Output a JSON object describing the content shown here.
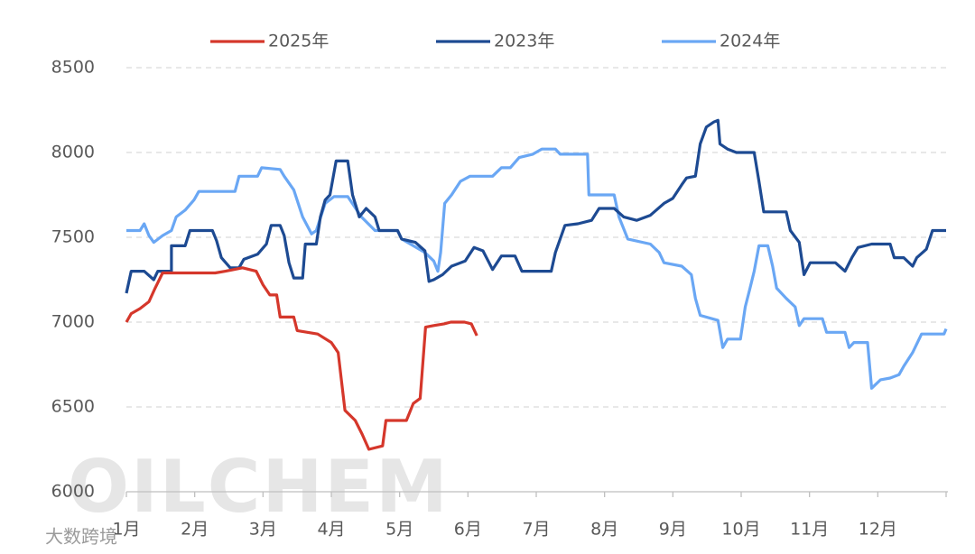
{
  "chart_data": {
    "type": "line",
    "watermark": "OILCHEM",
    "corner_mark": "大数跨境",
    "xlim": [
      0,
      12
    ],
    "xticks": [
      {
        "value": 0,
        "label": "1月"
      },
      {
        "value": 1,
        "label": "2月"
      },
      {
        "value": 2,
        "label": "3月"
      },
      {
        "value": 3,
        "label": "4月"
      },
      {
        "value": 4,
        "label": "5月"
      },
      {
        "value": 5,
        "label": "6月"
      },
      {
        "value": 6,
        "label": "7月"
      },
      {
        "value": 7,
        "label": "8月"
      },
      {
        "value": 8,
        "label": "9月"
      },
      {
        "value": 9,
        "label": "10月"
      },
      {
        "value": 10,
        "label": "11月"
      },
      {
        "value": 11,
        "label": "12月"
      }
    ],
    "ylim": [
      6000,
      8500
    ],
    "yticks": [
      6000,
      6500,
      7000,
      7500,
      8000,
      8500
    ],
    "grid": true,
    "legend": "top",
    "series": [
      {
        "name": "2025年",
        "color": "#d5372b",
        "x": [
          0,
          0.07,
          0.2,
          0.33,
          0.42,
          0.53,
          1.3,
          1.45,
          1.7,
          1.9,
          2.0,
          2.1,
          2.2,
          2.25,
          2.45,
          2.5,
          2.8,
          3.0,
          3.1,
          3.2,
          3.35,
          3.45,
          3.55,
          3.75,
          3.8,
          4.1,
          4.2,
          4.3,
          4.38,
          4.5,
          4.65,
          4.75,
          4.95,
          5.05,
          5.13
        ],
        "values": [
          7000,
          7050,
          7080,
          7120,
          7200,
          7290,
          7290,
          7300,
          7320,
          7300,
          7220,
          7160,
          7160,
          7030,
          7030,
          6950,
          6930,
          6880,
          6820,
          6480,
          6420,
          6340,
          6250,
          6270,
          6420,
          6420,
          6520,
          6550,
          6970,
          6980,
          6990,
          7000,
          7000,
          6990,
          6920
        ]
      },
      {
        "name": "2023年",
        "color": "#1d4a92",
        "x": [
          0,
          0.07,
          0.26,
          0.4,
          0.46,
          0.66,
          0.66,
          0.86,
          0.93,
          1.26,
          1.32,
          1.39,
          1.52,
          1.65,
          1.72,
          1.92,
          2.05,
          2.12,
          2.25,
          2.31,
          2.38,
          2.45,
          2.58,
          2.62,
          2.78,
          2.84,
          2.91,
          2.98,
          3.07,
          3.24,
          3.31,
          3.41,
          3.51,
          3.64,
          3.7,
          3.97,
          4.03,
          4.23,
          4.37,
          4.43,
          4.5,
          4.63,
          4.76,
          4.96,
          5.09,
          5.22,
          5.36,
          5.49,
          5.69,
          5.79,
          6.22,
          6.28,
          6.42,
          6.61,
          6.81,
          6.92,
          7.14,
          7.28,
          7.47,
          7.67,
          7.87,
          8.0,
          8.13,
          8.2,
          8.33,
          8.4,
          8.49,
          8.6,
          8.66,
          8.69,
          8.8,
          8.93,
          9.19,
          9.26,
          9.33,
          9.66,
          9.72,
          9.85,
          9.92,
          10.01,
          10.38,
          10.52,
          10.62,
          10.71,
          10.91,
          11.18,
          11.24,
          11.38,
          11.51,
          11.57,
          11.71,
          11.8,
          12
        ],
        "values": [
          7170,
          7300,
          7300,
          7250,
          7300,
          7300,
          7450,
          7450,
          7540,
          7540,
          7480,
          7380,
          7320,
          7320,
          7370,
          7400,
          7460,
          7570,
          7570,
          7510,
          7350,
          7260,
          7260,
          7460,
          7460,
          7620,
          7720,
          7750,
          7950,
          7950,
          7750,
          7620,
          7670,
          7620,
          7540,
          7540,
          7490,
          7470,
          7420,
          7240,
          7250,
          7280,
          7330,
          7360,
          7440,
          7420,
          7310,
          7390,
          7390,
          7300,
          7300,
          7410,
          7570,
          7580,
          7600,
          7670,
          7670,
          7620,
          7600,
          7630,
          7700,
          7730,
          7810,
          7850,
          7860,
          8050,
          8150,
          8180,
          8190,
          8050,
          8020,
          8000,
          8000,
          7830,
          7650,
          7650,
          7540,
          7470,
          7280,
          7350,
          7350,
          7300,
          7380,
          7440,
          7460,
          7460,
          7380,
          7380,
          7330,
          7380,
          7430,
          7540,
          7540
        ]
      },
      {
        "name": "2024年",
        "color": "#6aa7f4",
        "x": [
          0,
          0.2,
          0.26,
          0.33,
          0.4,
          0.53,
          0.66,
          0.73,
          0.86,
          0.99,
          1.06,
          1.59,
          1.65,
          1.92,
          1.98,
          2.25,
          2.31,
          2.45,
          2.58,
          2.71,
          2.78,
          2.91,
          3.04,
          3.24,
          3.44,
          3.64,
          3.97,
          4.03,
          4.37,
          4.5,
          4.56,
          4.6,
          4.66,
          4.76,
          4.89,
          5.03,
          5.36,
          5.49,
          5.62,
          5.75,
          5.95,
          6.08,
          6.28,
          6.35,
          6.75,
          6.77,
          7.14,
          7.21,
          7.34,
          7.67,
          7.8,
          7.87,
          8.13,
          8.27,
          8.33,
          8.4,
          8.66,
          8.73,
          8.8,
          8.99,
          9.06,
          9.13,
          9.19,
          9.26,
          9.39,
          9.46,
          9.52,
          9.66,
          9.79,
          9.85,
          9.92,
          10.19,
          10.25,
          10.52,
          10.58,
          10.65,
          10.85,
          10.91,
          11.04,
          11.18,
          11.31,
          11.38,
          11.51,
          11.64,
          11.97,
          12
        ],
        "values": [
          7540,
          7540,
          7580,
          7510,
          7470,
          7510,
          7540,
          7620,
          7660,
          7720,
          7770,
          7770,
          7860,
          7860,
          7910,
          7900,
          7860,
          7780,
          7620,
          7520,
          7540,
          7700,
          7740,
          7740,
          7620,
          7540,
          7540,
          7490,
          7410,
          7360,
          7300,
          7410,
          7700,
          7750,
          7830,
          7860,
          7860,
          7910,
          7910,
          7970,
          7990,
          8020,
          8020,
          7990,
          7990,
          7750,
          7750,
          7620,
          7490,
          7460,
          7410,
          7350,
          7330,
          7280,
          7140,
          7040,
          7010,
          6850,
          6900,
          6900,
          7090,
          7200,
          7300,
          7450,
          7450,
          7330,
          7200,
          7140,
          7090,
          6980,
          7020,
          7020,
          6940,
          6940,
          6850,
          6880,
          6880,
          6610,
          6660,
          6670,
          6690,
          6740,
          6820,
          6930,
          6930,
          6960
        ]
      }
    ]
  }
}
